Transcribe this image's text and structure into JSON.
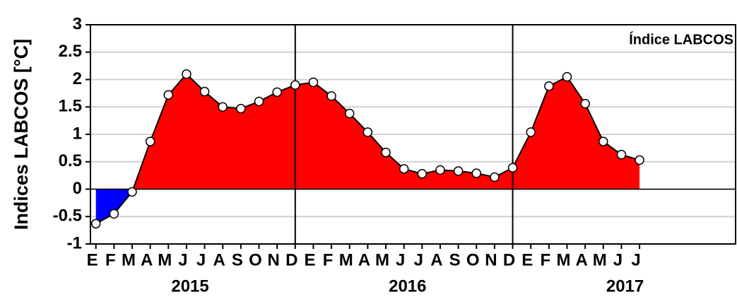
{
  "chart_data": {
    "type": "area",
    "annotation": "Índice LABCOS",
    "y_label": "Indices LABCOS [°C]",
    "categories": [
      "E",
      "F",
      "M",
      "A",
      "M",
      "J",
      "J",
      "A",
      "S",
      "O",
      "N",
      "D",
      "E",
      "F",
      "M",
      "A",
      "M",
      "J",
      "J",
      "A",
      "S",
      "O",
      "N",
      "D",
      "E",
      "F",
      "M",
      "A",
      "M",
      "J",
      "J"
    ],
    "values": [
      -0.63,
      -0.45,
      -0.05,
      0.87,
      1.72,
      2.1,
      1.78,
      1.5,
      1.47,
      1.6,
      1.77,
      1.9,
      1.95,
      1.7,
      1.38,
      1.04,
      0.67,
      0.37,
      0.28,
      0.35,
      0.33,
      0.29,
      0.22,
      0.39,
      1.04,
      1.88,
      2.05,
      1.56,
      0.87,
      0.63,
      0.53
    ],
    "years": [
      "2015",
      "2016",
      "2017"
    ],
    "positive_color": "#ff0000",
    "negative_color": "#0000ff",
    "year_separators": [
      11,
      23
    ],
    "xlim": [
      -0.3,
      35.3
    ],
    "ylim": [
      -1,
      3
    ],
    "yticks": [
      -1,
      -0.5,
      0,
      0.5,
      1,
      1.5,
      2,
      2.5,
      3
    ],
    "grid": true
  }
}
